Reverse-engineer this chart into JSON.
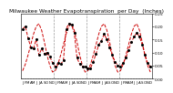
{
  "title": "Milwaukee Weather Evapotranspiration  per Day  (Inches)",
  "title_fontsize": 4.2,
  "x_labels": [
    "J",
    "F",
    "M",
    "A",
    "M",
    "J",
    "J",
    "A",
    "S",
    "O",
    "N",
    "D",
    "J",
    "F",
    "M",
    "A",
    "M",
    "J",
    "J",
    "A",
    "S",
    "O",
    "N",
    "D",
    "J",
    "F",
    "M",
    "A",
    "M",
    "J",
    "J",
    "A",
    "S",
    "O",
    "N",
    "D",
    "J",
    "F",
    "M",
    "A",
    "M",
    "J",
    "J",
    "A",
    "S",
    "O",
    "N",
    "D"
  ],
  "avg_values": [
    0.03,
    0.055,
    0.09,
    0.13,
    0.17,
    0.2,
    0.21,
    0.185,
    0.14,
    0.09,
    0.05,
    0.025,
    0.03,
    0.055,
    0.09,
    0.13,
    0.17,
    0.2,
    0.21,
    0.185,
    0.14,
    0.09,
    0.05,
    0.025,
    0.03,
    0.055,
    0.09,
    0.13,
    0.17,
    0.2,
    0.21,
    0.185,
    0.14,
    0.09,
    0.05,
    0.025,
    0.03,
    0.055,
    0.09,
    0.13,
    0.17,
    0.2,
    0.21,
    0.185,
    0.14,
    0.09,
    0.05,
    0.025
  ],
  "actual_values": [
    0.19,
    0.2,
    0.155,
    0.12,
    0.115,
    0.15,
    0.09,
    0.115,
    0.095,
    0.1,
    0.085,
    0.06,
    0.045,
    0.06,
    0.055,
    0.07,
    0.19,
    0.21,
    0.205,
    0.175,
    0.08,
    0.055,
    0.045,
    0.045,
    0.04,
    0.04,
    0.065,
    0.095,
    0.13,
    0.145,
    0.17,
    0.15,
    0.12,
    0.09,
    0.065,
    0.05,
    0.045,
    0.06,
    0.08,
    0.11,
    0.14,
    0.16,
    0.175,
    0.16,
    0.13,
    0.09,
    0.06,
    0.045
  ],
  "ylim": [
    0.0,
    0.25
  ],
  "yticks": [
    0.0,
    0.05,
    0.1,
    0.15,
    0.2,
    0.25
  ],
  "ytick_labels": [
    "0.00",
    "0.05",
    "0.10",
    "0.15",
    "0.20",
    "0.25"
  ],
  "line_color": "#cc0000",
  "marker_color": "#000000",
  "bg_color": "#ffffff",
  "grid_color": "#999999",
  "year_lines": [
    11.5,
    23.5,
    35.5
  ],
  "ylabel_fontsize": 3.2,
  "xlabel_fontsize": 2.8,
  "n_points": 48
}
